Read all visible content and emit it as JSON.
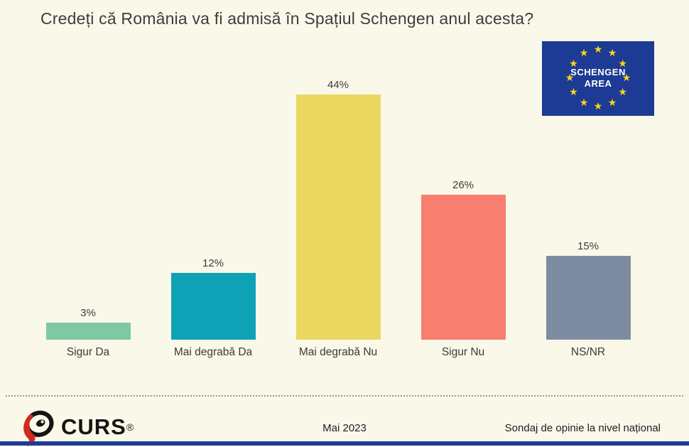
{
  "page": {
    "background": "#FAF8E9",
    "title": "Credeți că România va fi admisă în Spațiul Schengen anul acesta?",
    "title_color": "#3D3D3D"
  },
  "flag": {
    "line1": "SCHENGEN",
    "line2": "AREA",
    "background": "#1D3B94",
    "star_color": "#FFD617",
    "star_glyph": "★"
  },
  "chart_data": {
    "type": "bar",
    "title": "Credeți că România va fi admisă în Spațiul Schengen anul acesta?",
    "categories": [
      "Sigur Da",
      "Mai degrabă Da",
      "Mai degrabă Nu",
      "Sigur Nu",
      "NS/NR"
    ],
    "values": [
      3,
      12,
      44,
      26,
      15
    ],
    "value_labels": [
      "3%",
      "12%",
      "44%",
      "26%",
      "15%"
    ],
    "colors": [
      "#7EC9A4",
      "#0FA2B7",
      "#EAD75F",
      "#F87E70",
      "#7E8CA2"
    ],
    "xlabel": "",
    "ylabel": "",
    "ylim": [
      0,
      50
    ],
    "grid": false,
    "legend": "none",
    "data_label_format": "percent"
  },
  "footer": {
    "logo_text": "CURS",
    "logo_registered": "®",
    "date": "Mai 2023",
    "note": "Sondaj de opinie la nivel național",
    "accent_red": "#D3291C",
    "accent_black": "#141414"
  }
}
